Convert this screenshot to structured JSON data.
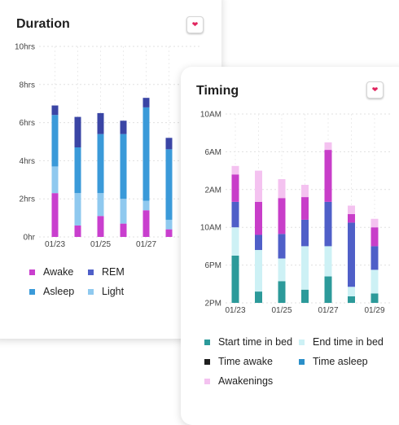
{
  "colors": {
    "awake": "#c93fce",
    "rem": "#4f5fc8",
    "asleep": "#3a9ad9",
    "light": "#8fc9ef",
    "rem_dark": "#3a45a5",
    "start_in_bed": "#2c9a9a",
    "end_in_bed": "#cdf1f5",
    "time_awake": "#c83ec9",
    "time_asleep": "#4f5fc8",
    "awakenings": "#f4c2f0"
  },
  "duration": {
    "title": "Duration",
    "favorite_icon": "heart-icon",
    "legend": [
      {
        "label": "Awake",
        "color_key": "awake"
      },
      {
        "label": "REM",
        "color_key": "rem"
      },
      {
        "label": "Asleep",
        "color_key": "asleep"
      },
      {
        "label": "Light",
        "color_key": "light"
      }
    ]
  },
  "timing": {
    "title": "Timing",
    "favorite_icon": "heart-icon",
    "legend": [
      {
        "label": "Start time in bed",
        "color_key": "start_in_bed"
      },
      {
        "label": "End time in bed",
        "color_key": "end_in_bed"
      },
      {
        "label": "Time awake",
        "color_key": "time_awake"
      },
      {
        "label": "Time asleep",
        "color_key": "time_asleep"
      },
      {
        "label": "Awakenings",
        "color_key": "awakenings"
      }
    ]
  },
  "chart_data": [
    {
      "type": "bar",
      "stacked": true,
      "title": "Duration",
      "y_ticks": [
        "0hr",
        "2hrs",
        "4hrs",
        "6hrs",
        "8hrs",
        "10hrs"
      ],
      "ylim": [
        0,
        10
      ],
      "x_tick_labels": [
        "01/23",
        "01/25",
        "01/27"
      ],
      "grid": true,
      "series": [
        {
          "name": "Awake",
          "color_key": "awake",
          "values": [
            2.3,
            0.6,
            1.1,
            0.7,
            1.4,
            0.4
          ]
        },
        {
          "name": "Light",
          "color_key": "light",
          "values": [
            1.4,
            1.7,
            1.2,
            1.3,
            0.5,
            0.5
          ]
        },
        {
          "name": "Asleep",
          "color_key": "asleep",
          "values": [
            2.7,
            2.4,
            3.1,
            3.4,
            4.9,
            3.7
          ]
        },
        {
          "name": "REM",
          "color_key": "rem_dark",
          "values": [
            0.5,
            1.6,
            1.1,
            0.7,
            0.5,
            0.6
          ]
        }
      ]
    },
    {
      "type": "bar",
      "stacked": true,
      "title": "Timing",
      "y_ticks": [
        "2PM",
        "6PM",
        "10AM",
        "2AM",
        "6AM",
        "10AM"
      ],
      "ylim": [
        0,
        20
      ],
      "x_tick_labels": [
        "01/23",
        "01/25",
        "01/27",
        "01/29"
      ],
      "grid": true,
      "series": [
        {
          "name": "Start time in bed",
          "color_key": "start_in_bed",
          "values": [
            5.0,
            1.2,
            2.3,
            1.4,
            2.8,
            0.7,
            1.0
          ]
        },
        {
          "name": "End time in bed",
          "color_key": "end_in_bed",
          "values": [
            3.0,
            4.4,
            2.4,
            4.6,
            3.2,
            1.0,
            2.5
          ]
        },
        {
          "name": "Time asleep",
          "color_key": "time_asleep",
          "values": [
            2.7,
            1.6,
            2.6,
            2.8,
            4.7,
            6.8,
            2.5
          ]
        },
        {
          "name": "Time awake",
          "color_key": "time_awake",
          "values": [
            2.9,
            3.5,
            3.8,
            2.4,
            5.5,
            0.9,
            2.0
          ]
        },
        {
          "name": "Awakenings",
          "color_key": "awakenings",
          "values": [
            0.9,
            3.3,
            2.0,
            1.3,
            0.8,
            0.9,
            0.9
          ]
        }
      ]
    }
  ]
}
